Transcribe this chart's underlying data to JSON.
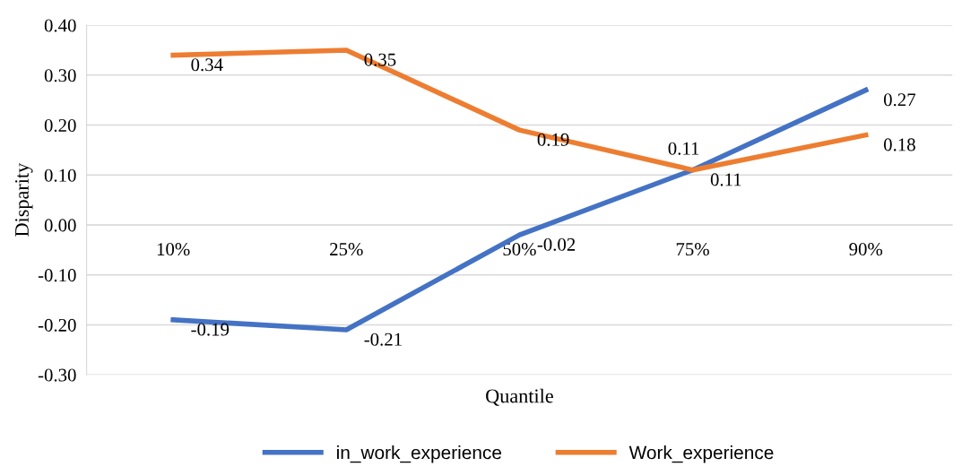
{
  "chart_data": {
    "type": "line",
    "xlabel": "Quantile",
    "ylabel": "Disparity",
    "categories": [
      "10%",
      "25%",
      "50%",
      "75%",
      "90%"
    ],
    "series": [
      {
        "name": "in_work_experience",
        "color": "#4472c4",
        "values": [
          -0.19,
          -0.21,
          -0.02,
          0.11,
          0.27
        ]
      },
      {
        "name": "Work_experience",
        "color": "#ed7d31",
        "values": [
          0.34,
          0.35,
          0.19,
          0.11,
          0.18
        ]
      }
    ],
    "ylim": [
      -0.3,
      0.4
    ],
    "yticks": [
      {
        "value": -0.3,
        "label": "-0.30"
      },
      {
        "value": -0.2,
        "label": "-0.20"
      },
      {
        "value": -0.1,
        "label": "-0.10"
      },
      {
        "value": 0,
        "label": "0.00"
      },
      {
        "value": 0.1,
        "label": "0.10"
      },
      {
        "value": 0.2,
        "label": "0.20"
      },
      {
        "value": 0.3,
        "label": "0.30"
      },
      {
        "value": 0.4,
        "label": "0.40"
      }
    ],
    "grid": "y",
    "legend": "bottom",
    "data_labels": true,
    "marker": "none",
    "line_style": "solid"
  }
}
